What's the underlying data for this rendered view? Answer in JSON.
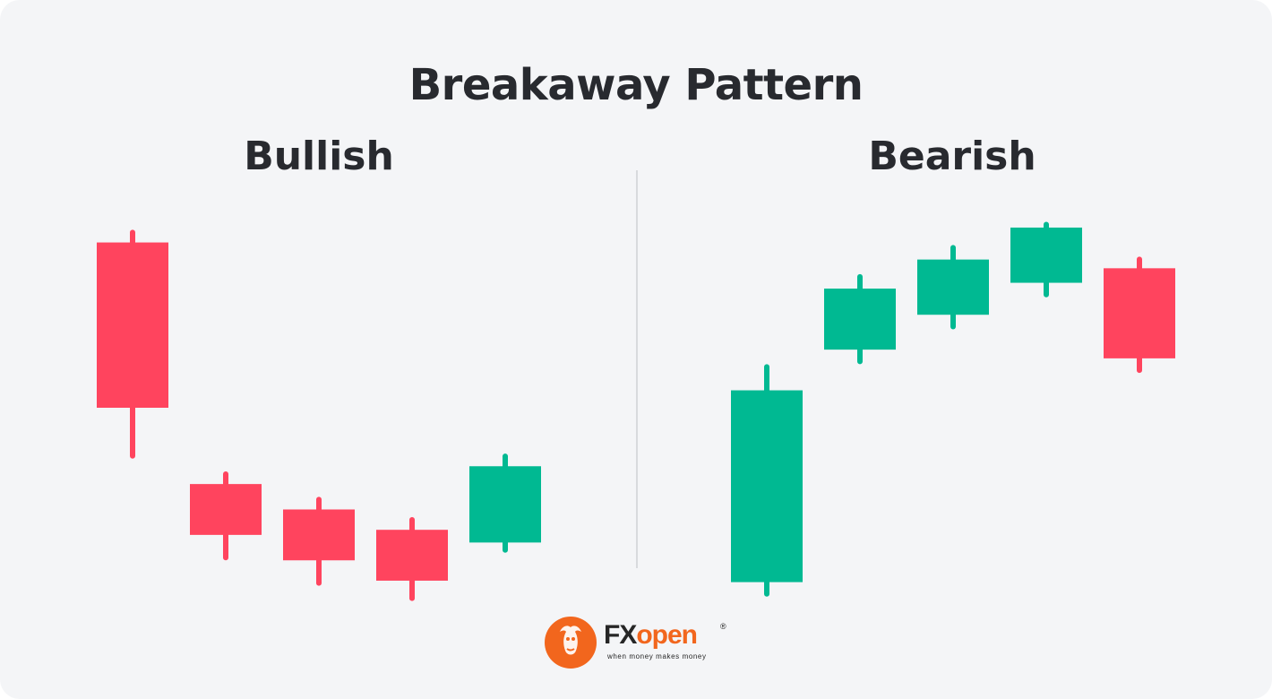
{
  "header": {
    "title": "Breakaway Pattern"
  },
  "colors": {
    "background": "#f4f5f7",
    "bearish_candle": "#ff445e",
    "bullish_candle": "#00b992",
    "text": "#282a2f",
    "divider": "#d8dadd",
    "brand": "#f2661d"
  },
  "chart_data": [
    {
      "type": "candlestick",
      "title": "Bullish",
      "grid": false,
      "axes": false,
      "candles": [
        {
          "open": 9.5,
          "high": 10.0,
          "low": 1.0,
          "close": 3.0,
          "direction": "down"
        },
        {
          "open": 0.0,
          "high": 0.5,
          "low": -3.0,
          "close": -2.0,
          "direction": "down"
        },
        {
          "open": -1.0,
          "high": -0.5,
          "low": -4.0,
          "close": -3.0,
          "direction": "down"
        },
        {
          "open": -1.8,
          "high": -1.3,
          "low": -4.6,
          "close": -3.8,
          "direction": "down"
        },
        {
          "open": -2.3,
          "high": 1.2,
          "low": -2.7,
          "close": 0.7,
          "direction": "up"
        }
      ],
      "ylim": [
        -5,
        11
      ]
    },
    {
      "type": "candlestick",
      "title": "Bearish",
      "grid": false,
      "axes": false,
      "candles": [
        {
          "open": 1.0,
          "high": 8.5,
          "low": 0.5,
          "close": 7.6,
          "direction": "up"
        },
        {
          "open": 9.0,
          "high": 11.6,
          "low": 8.5,
          "close": 11.1,
          "direction": "up"
        },
        {
          "open": 10.2,
          "high": 12.6,
          "low": 9.7,
          "close": 12.1,
          "direction": "up"
        },
        {
          "open": 11.3,
          "high": 13.4,
          "low": 10.8,
          "close": 13.2,
          "direction": "up"
        },
        {
          "open": 11.8,
          "high": 12.2,
          "low": 8.2,
          "close": 8.7,
          "direction": "down"
        }
      ],
      "ylim": [
        0,
        14
      ]
    }
  ],
  "logo": {
    "brand_fx": "FX",
    "brand_open": "open",
    "tagline": "when money makes money",
    "registered": "®"
  }
}
